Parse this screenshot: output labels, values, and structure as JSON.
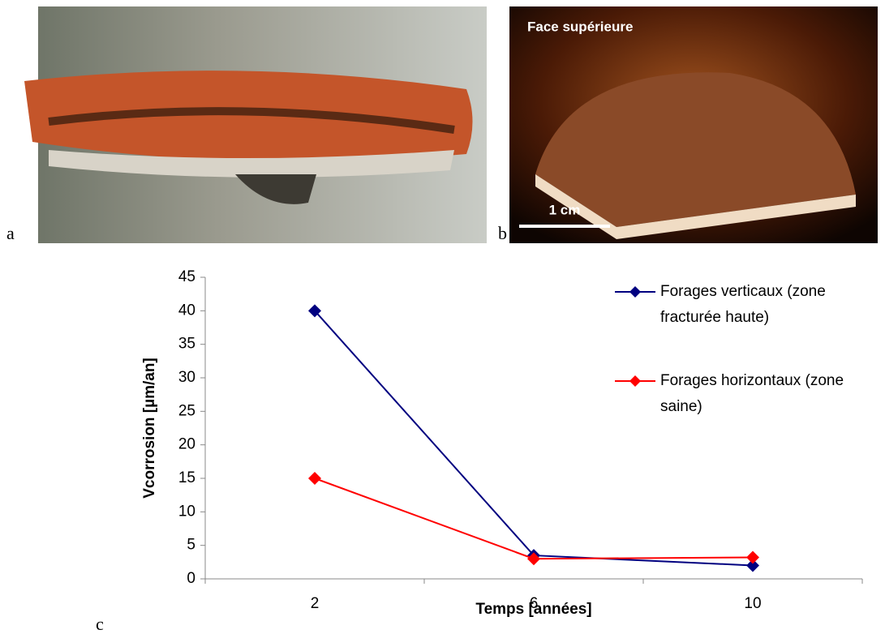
{
  "panel_labels": [
    "a",
    "b",
    "c"
  ],
  "photo_b": {
    "caption": "Face supérieure",
    "scale_bar": "1 cm"
  },
  "chart_data": {
    "type": "line",
    "x_label": "Temps [années]",
    "y_label": "Vcorrosion [µm/an]",
    "categories": [
      "2",
      "6",
      "10"
    ],
    "series": [
      {
        "name": "Forages verticaux (zone fracturée haute)",
        "color": "#000080",
        "values": [
          40,
          3.5,
          2
        ]
      },
      {
        "name": "Forages horizontaux (zone saine)",
        "color": "#ff0000",
        "values": [
          15,
          3,
          3.2
        ]
      }
    ],
    "ylim": [
      0,
      45
    ],
    "yticks": [
      0,
      5,
      10,
      15,
      20,
      25,
      30,
      35,
      40,
      45
    ]
  }
}
